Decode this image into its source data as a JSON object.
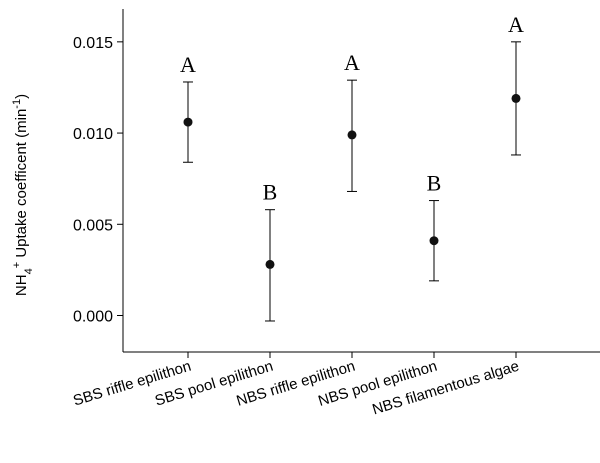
{
  "chart_data": {
    "type": "scatter",
    "ylabel_parts": {
      "base": "NH",
      "sub": "4",
      "sup": "+",
      "rest": " Uptake coefficent (min",
      "unit_sup": "-1",
      "close": ")"
    },
    "ylim": [
      -0.002,
      0.0168
    ],
    "yticks": [
      0.0,
      0.005,
      0.01,
      0.015
    ],
    "ytick_labels": [
      "0.000",
      "0.005",
      "0.010",
      "0.015"
    ],
    "categories": [
      "SBS riffle epilithon",
      "SBS pool epilithon",
      "NBS riffle epilithon",
      "NBS pool epilithon",
      "NBS filamentous algae"
    ],
    "values": [
      0.0106,
      0.0028,
      0.0099,
      0.0041,
      0.0119
    ],
    "error_upper": [
      0.0128,
      0.0058,
      0.0129,
      0.0063,
      0.015
    ],
    "error_lower": [
      0.0084,
      -0.0003,
      0.0068,
      0.0019,
      0.0088
    ],
    "annotations": [
      "A",
      "B",
      "A",
      "B",
      "A"
    ],
    "grid": false
  }
}
